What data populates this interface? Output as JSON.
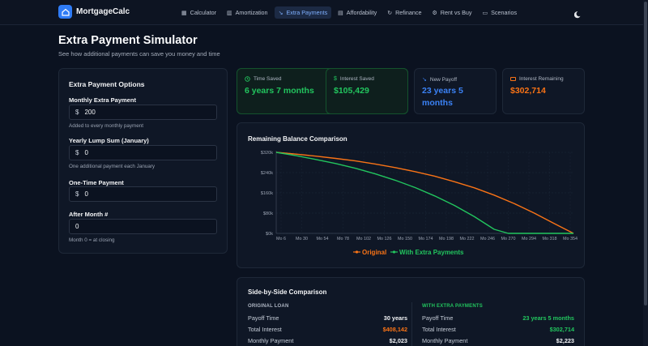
{
  "app": {
    "name": "MortgageCalc"
  },
  "nav": {
    "items": [
      {
        "label": "Calculator",
        "icon": "calculator-icon",
        "glyph": "▦"
      },
      {
        "label": "Amortization",
        "icon": "bar-chart-icon",
        "glyph": "▥"
      },
      {
        "label": "Extra Payments",
        "icon": "trend-down-icon",
        "glyph": "↘"
      },
      {
        "label": "Affordability",
        "icon": "document-icon",
        "glyph": "▤"
      },
      {
        "label": "Refinance",
        "icon": "refresh-icon",
        "glyph": "↻"
      },
      {
        "label": "Rent vs Buy",
        "icon": "gear-icon",
        "glyph": "⚙"
      },
      {
        "label": "Scenarios",
        "icon": "book-icon",
        "glyph": "▭"
      }
    ],
    "active_index": 2
  },
  "page": {
    "title": "Extra Payment Simulator",
    "subtitle": "See how additional payments can save you money and time"
  },
  "options": {
    "title": "Extra Payment Options",
    "monthly": {
      "label": "Monthly Extra Payment",
      "currency": "$",
      "value": "200",
      "help": "Added to every monthly payment"
    },
    "yearly": {
      "label": "Yearly Lump Sum (January)",
      "currency": "$",
      "value": "0",
      "help": "One additional payment each January"
    },
    "onetime": {
      "label": "One-Time Payment",
      "currency": "$",
      "value": "0"
    },
    "after_month": {
      "label": "After Month #",
      "value": "0",
      "help": "Month 0 = at closing"
    }
  },
  "stats": {
    "time_saved": {
      "label": "Time Saved",
      "value": "6 years 7 months",
      "color": "#22c55e"
    },
    "interest_saved": {
      "label": "Interest Saved",
      "value": "$105,429",
      "color": "#22c55e"
    },
    "new_payoff": {
      "label": "New Payoff",
      "value": "23 years 5 months",
      "color": "#3b82f6"
    },
    "interest_remaining": {
      "label": "Interest Remaining",
      "value": "$302,714",
      "color": "#f97316"
    }
  },
  "chart_data": {
    "type": "line",
    "title": "Remaining Balance Comparison",
    "x_ticks": [
      "Mo 6",
      "Mo 30",
      "Mo 54",
      "Mo 78",
      "Mo 102",
      "Mo 126",
      "Mo 150",
      "Mo 174",
      "Mo 198",
      "Mo 222",
      "Mo 246",
      "Mo 270",
      "Mo 294",
      "Mo 318",
      "Mo 354"
    ],
    "y_ticks": [
      "$0k",
      "$80k",
      "$160k",
      "$240k",
      "$320k"
    ],
    "ylim": [
      0,
      320
    ],
    "legend_position": "bottom",
    "series": [
      {
        "name": "Original",
        "color": "#f97316",
        "x": [
          0,
          24,
          48,
          72,
          96,
          120,
          144,
          168,
          192,
          216,
          240,
          264,
          288,
          312,
          336,
          360
        ],
        "y": [
          320,
          313,
          305,
          296,
          286,
          274,
          260,
          244,
          226,
          204,
          180,
          151,
          118,
          81,
          40,
          0
        ]
      },
      {
        "name": "With Extra Payments",
        "color": "#22c55e",
        "x": [
          0,
          24,
          48,
          72,
          96,
          120,
          144,
          168,
          192,
          216,
          240,
          264,
          281,
          360
        ],
        "y": [
          320,
          307,
          292,
          276,
          257,
          235,
          210,
          181,
          148,
          110,
          66,
          16,
          0,
          0
        ]
      }
    ]
  },
  "comparison": {
    "title": "Side-by-Side Comparison",
    "original": {
      "heading": "ORIGINAL LOAN",
      "rows": [
        {
          "label": "Payoff Time",
          "value": "30 years"
        },
        {
          "label": "Total Interest",
          "value": "$408,142"
        },
        {
          "label": "Monthly Payment",
          "value": "$2,023"
        }
      ]
    },
    "extra": {
      "heading": "WITH EXTRA PAYMENTS",
      "rows": [
        {
          "label": "Payoff Time",
          "value": "23 years 5 months"
        },
        {
          "label": "Total Interest",
          "value": "$302,714"
        },
        {
          "label": "Monthly Payment",
          "value": "$2,223"
        }
      ]
    }
  },
  "colors": {
    "accent": "#2f7cf6",
    "green": "#22c55e",
    "orange": "#f97316",
    "blue": "#3b82f6"
  }
}
